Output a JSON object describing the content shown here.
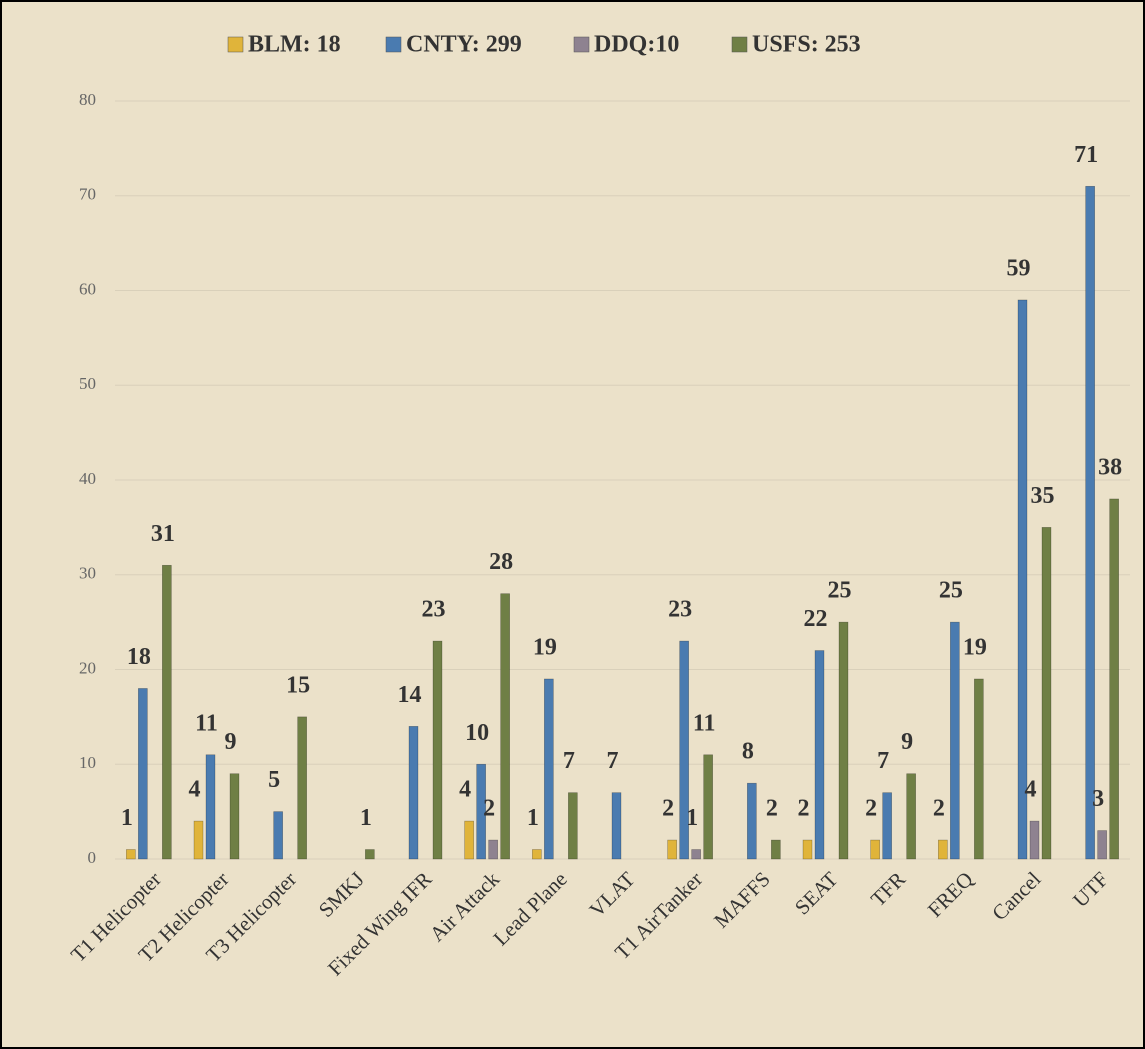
{
  "chart_data": {
    "type": "bar",
    "categories": [
      "T1 Helicopter",
      "T2 Helicopter",
      "T3 Helicopter",
      "SMKJ",
      "Fixed Wing IFR",
      "Air Attack",
      "Lead Plane",
      "VLAT",
      "T1 AirTanker",
      "MAFFS",
      "SEAT",
      "TFR",
      "FREQ",
      "Cancel",
      "UTF"
    ],
    "series": [
      {
        "name": "BLM: 18",
        "color": "#e0b43a",
        "values": [
          1,
          4,
          null,
          null,
          null,
          4,
          1,
          null,
          2,
          null,
          2,
          2,
          2,
          null,
          null
        ]
      },
      {
        "name": "CNTY: 299",
        "color": "#4a7bb0",
        "values": [
          18,
          11,
          5,
          null,
          14,
          10,
          19,
          7,
          23,
          8,
          22,
          7,
          25,
          59,
          71
        ]
      },
      {
        "name": "DDQ:10",
        "color": "#8e8290",
        "values": [
          null,
          null,
          null,
          null,
          null,
          2,
          null,
          null,
          1,
          null,
          null,
          null,
          null,
          4,
          3
        ]
      },
      {
        "name": "USFS: 253",
        "color": "#6f7f45",
        "values": [
          31,
          9,
          15,
          1,
          23,
          28,
          7,
          null,
          11,
          2,
          25,
          9,
          19,
          35,
          38
        ]
      }
    ],
    "ylim": [
      0,
      80
    ],
    "yticks": [
      0,
      10,
      20,
      30,
      40,
      50,
      60,
      70,
      80
    ],
    "grid": true,
    "legend": "top"
  }
}
